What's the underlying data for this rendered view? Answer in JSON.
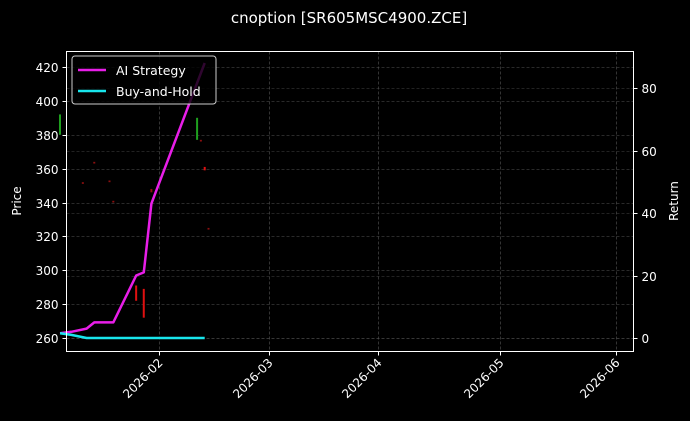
{
  "chart_data": {
    "type": "line",
    "title": "cnoption [SR605MSC4900.ZCE]",
    "xlabel": "",
    "ylabel": "Price",
    "y2label": "Return",
    "ylim": [
      252,
      429
    ],
    "y2lim": [
      -4,
      92
    ],
    "grid": true,
    "legend_position": "upper left",
    "x_tick_labels": [
      "2026-02",
      "2026-03",
      "2026-04",
      "2026-05",
      "2026-06"
    ],
    "y_tick_labels": [
      "260",
      "280",
      "300",
      "320",
      "340",
      "360",
      "380",
      "400",
      "420"
    ],
    "y2_tick_labels": [
      "0",
      "20",
      "40",
      "60",
      "80"
    ],
    "legend": [
      "AI Strategy",
      "Buy-and-Hold"
    ],
    "series": [
      {
        "name": "AI Strategy",
        "axis": "right",
        "color": "#e81ee8",
        "x": [
          "2026-01-06",
          "2026-01-09",
          "2026-01-13",
          "2026-01-15",
          "2026-01-20",
          "2026-01-26",
          "2026-01-28",
          "2026-01-30",
          "2026-02-13"
        ],
        "values": [
          1.5,
          2,
          3,
          5,
          5,
          20,
          21,
          43,
          88
        ]
      },
      {
        "name": "Buy-and-Hold",
        "axis": "right",
        "color": "#18e5ec",
        "x": [
          "2026-01-06",
          "2026-01-09",
          "2026-01-13",
          "2026-02-13"
        ],
        "values": [
          1.5,
          1,
          0,
          0
        ]
      }
    ],
    "candles": [
      {
        "x": "2026-01-06",
        "low": 380,
        "high": 392,
        "color": "#1fa01f"
      },
      {
        "x": "2026-01-12",
        "low": 351,
        "high": 352,
        "color": "#8b0f0f"
      },
      {
        "x": "2026-01-15",
        "low": 363,
        "high": 364,
        "color": "#8b0f0f"
      },
      {
        "x": "2026-01-19",
        "low": 352,
        "high": 353,
        "color": "#8b0f0f"
      },
      {
        "x": "2026-01-20",
        "low": 340,
        "high": 341,
        "color": "#8b0f0f"
      },
      {
        "x": "2026-01-26",
        "low": 282,
        "high": 291,
        "color": "#e01010"
      },
      {
        "x": "2026-01-28",
        "low": 272,
        "high": 289,
        "color": "#e01010"
      },
      {
        "x": "2026-01-30",
        "low": 346,
        "high": 348,
        "color": "#8b0f0f"
      },
      {
        "x": "2026-02-11",
        "low": 377,
        "high": 390,
        "color": "#1fa01f"
      },
      {
        "x": "2026-02-12",
        "low": 376,
        "high": 377,
        "color": "#8b0f0f"
      },
      {
        "x": "2026-02-13",
        "low": 359,
        "high": 361,
        "color": "#e01010"
      },
      {
        "x": "2026-02-14",
        "low": 324,
        "high": 325,
        "color": "#8b0f0f"
      }
    ]
  }
}
